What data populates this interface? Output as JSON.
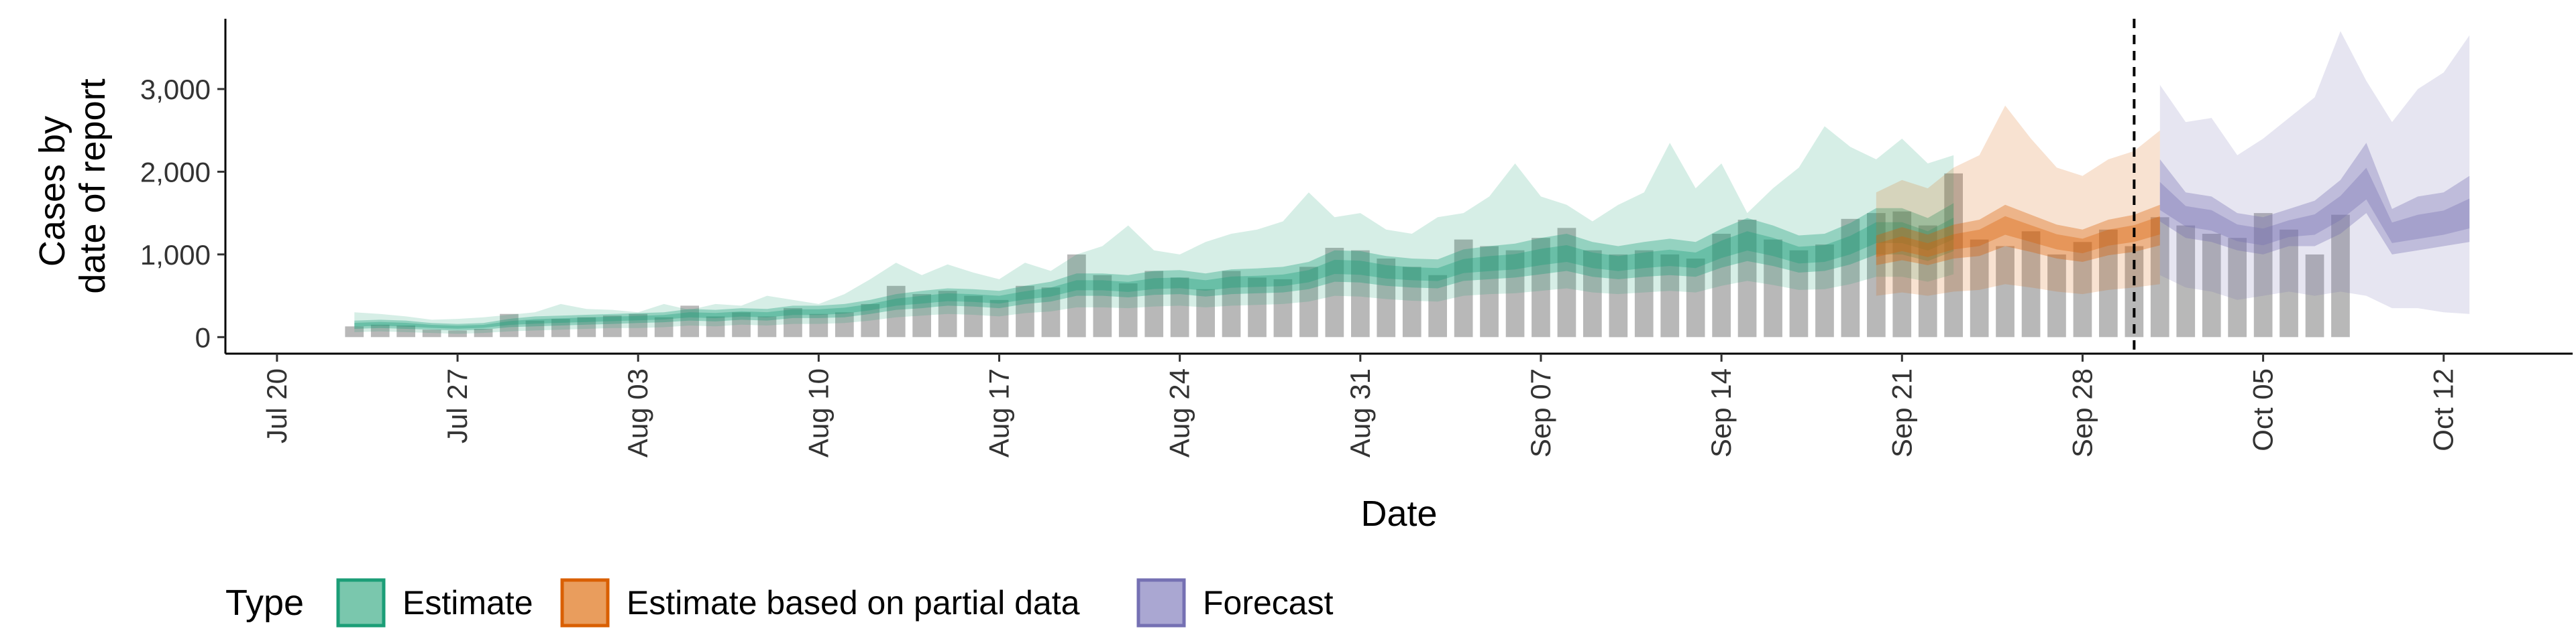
{
  "chart_data": {
    "type": "area",
    "title": "",
    "xlabel": "Date",
    "ylabel_lines": [
      "Cases by",
      "date of report"
    ],
    "x_range": [
      "2020-07-18",
      "2020-10-17"
    ],
    "ylim": [
      -200,
      3850
    ],
    "grid": false,
    "y_ticks": [
      0,
      1000,
      2000,
      3000
    ],
    "y_tick_labels": [
      "0",
      "1,000",
      "2,000",
      "3,000"
    ],
    "x_ticks": [
      "2020-07-20",
      "2020-07-27",
      "2020-08-03",
      "2020-08-10",
      "2020-08-17",
      "2020-08-24",
      "2020-08-31",
      "2020-09-07",
      "2020-09-14",
      "2020-09-21",
      "2020-09-28",
      "2020-10-05",
      "2020-10-12"
    ],
    "x_tick_labels": [
      "Jul 20",
      "Jul 27",
      "Aug 03",
      "Aug 10",
      "Aug 17",
      "Aug 24",
      "Aug 31",
      "Sep 07",
      "Sep 14",
      "Sep 21",
      "Sep 28",
      "Oct 05",
      "Oct 12"
    ],
    "vline_date": "2020-09-30",
    "bars": {
      "start_date": "2020-07-23",
      "color": "#a6a6a6",
      "values": [
        130,
        150,
        140,
        90,
        80,
        100,
        280,
        200,
        220,
        240,
        260,
        280,
        240,
        380,
        250,
        300,
        250,
        350,
        280,
        300,
        400,
        620,
        520,
        560,
        500,
        450,
        620,
        600,
        1000,
        750,
        650,
        800,
        720,
        580,
        800,
        720,
        700,
        850,
        1080,
        1050,
        950,
        850,
        750,
        1180,
        1100,
        1050,
        1200,
        1320,
        1050,
        1000,
        1050,
        1000,
        950,
        1250,
        1420,
        1180,
        1050,
        1120,
        1430,
        1500,
        1520,
        1350,
        1980,
        1180,
        1100,
        1280,
        1000,
        1150,
        1300,
        1100,
        1450,
        1350,
        1250,
        1200,
        1500,
        1300,
        1000,
        1480
      ]
    },
    "series": [
      {
        "name": "Estimate",
        "color": "#1b9e77",
        "start_date": "2020-07-23",
        "median": [
          150,
          160,
          150,
          130,
          120,
          130,
          170,
          190,
          200,
          210,
          220,
          230,
          240,
          270,
          260,
          280,
          270,
          300,
          300,
          320,
          360,
          420,
          450,
          480,
          470,
          450,
          500,
          540,
          620,
          620,
          600,
          640,
          650,
          620,
          660,
          670,
          680,
          730,
          840,
          830,
          780,
          760,
          750,
          850,
          880,
          900,
          960,
          1000,
          920,
          880,
          920,
          950,
          920,
          1050,
          1150,
          1080,
          980,
          1000,
          1100,
          1250,
          1250,
          1150,
          1300
        ],
        "inner_lower": [
          100,
          110,
          100,
          90,
          80,
          90,
          120,
          130,
          140,
          150,
          160,
          170,
          180,
          200,
          190,
          210,
          200,
          230,
          230,
          240,
          280,
          330,
          350,
          380,
          370,
          350,
          400,
          430,
          500,
          500,
          480,
          510,
          520,
          490,
          520,
          530,
          540,
          580,
          670,
          660,
          620,
          600,
          590,
          680,
          700,
          720,
          760,
          800,
          730,
          700,
          730,
          750,
          730,
          840,
          920,
          860,
          780,
          800,
          880,
          1000,
          1000,
          920,
          1040
        ],
        "inner_upper": [
          200,
          210,
          200,
          170,
          160,
          170,
          220,
          250,
          260,
          270,
          280,
          290,
          300,
          340,
          330,
          350,
          340,
          380,
          380,
          400,
          450,
          520,
          560,
          590,
          580,
          560,
          620,
          670,
          770,
          770,
          750,
          800,
          810,
          770,
          820,
          830,
          850,
          910,
          1050,
          1040,
          980,
          950,
          940,
          1060,
          1100,
          1130,
          1200,
          1250,
          1150,
          1100,
          1150,
          1190,
          1150,
          1310,
          1440,
          1350,
          1230,
          1250,
          1380,
          1560,
          1560,
          1440,
          1620
        ],
        "outer_lower": [
          60,
          70,
          60,
          50,
          40,
          50,
          70,
          80,
          90,
          100,
          110,
          110,
          120,
          140,
          130,
          150,
          140,
          160,
          160,
          170,
          200,
          240,
          260,
          280,
          270,
          250,
          290,
          310,
          360,
          360,
          350,
          370,
          380,
          360,
          380,
          390,
          400,
          430,
          500,
          490,
          460,
          440,
          430,
          500,
          520,
          530,
          560,
          590,
          540,
          520,
          540,
          560,
          540,
          620,
          680,
          630,
          570,
          580,
          640,
          730,
          730,
          670,
          760
        ],
        "outer_upper": [
          300,
          280,
          250,
          210,
          220,
          240,
          270,
          300,
          400,
          340,
          330,
          300,
          400,
          330,
          400,
          380,
          500,
          450,
          400,
          520,
          700,
          900,
          750,
          880,
          780,
          700,
          900,
          800,
          1000,
          1100,
          1350,
          1050,
          1000,
          1150,
          1250,
          1300,
          1400,
          1750,
          1450,
          1500,
          1300,
          1250,
          1450,
          1500,
          1700,
          2100,
          1700,
          1600,
          1400,
          1600,
          1750,
          2350,
          1800,
          2100,
          1500,
          1800,
          2050,
          2550,
          2300,
          2150,
          2400,
          2100,
          2200
        ]
      },
      {
        "name": "Estimate based on partial data",
        "color": "#d95f02",
        "start_date": "2020-09-20",
        "median": [
          1050,
          1130,
          1050,
          1150,
          1200,
          1350,
          1250,
          1150,
          1100,
          1200,
          1250,
          1350
        ],
        "inner_lower": [
          870,
          930,
          870,
          950,
          980,
          1100,
          1030,
          950,
          910,
          990,
          1030,
          1110
        ],
        "inner_upper": [
          1230,
          1330,
          1240,
          1360,
          1420,
          1600,
          1480,
          1360,
          1300,
          1420,
          1480,
          1600
        ],
        "outer_lower": [
          500,
          540,
          500,
          550,
          570,
          640,
          600,
          550,
          520,
          570,
          600,
          640
        ],
        "outer_upper": [
          1750,
          1900,
          1800,
          2050,
          2200,
          2800,
          2400,
          2050,
          1950,
          2150,
          2250,
          2500
        ]
      },
      {
        "name": "Forecast",
        "color": "#7570b3",
        "start_date": "2020-10-01",
        "median": [
          1650,
          1450,
          1400,
          1250,
          1200,
          1300,
          1350,
          1550,
          1800,
          1250,
          1300,
          1350,
          1450
        ],
        "inner_lower": [
          1400,
          1200,
          1150,
          1050,
          1000,
          1100,
          1100,
          1250,
          1500,
          1000,
          1050,
          1100,
          1150
        ],
        "inner_upper": [
          2150,
          1750,
          1700,
          1500,
          1450,
          1550,
          1650,
          1900,
          2350,
          1550,
          1700,
          1750,
          1950
        ],
        "outer_lower": [
          750,
          600,
          550,
          450,
          500,
          550,
          500,
          550,
          500,
          350,
          350,
          300,
          280
        ],
        "outer_upper": [
          3050,
          2600,
          2650,
          2200,
          2400,
          2650,
          2900,
          3700,
          3100,
          2600,
          3000,
          3200,
          3650
        ]
      }
    ],
    "legend": {
      "title": "Type",
      "position": "bottom",
      "entries": [
        {
          "label": "Estimate",
          "fill": "#7ac7ad",
          "stroke": "#1b9e77"
        },
        {
          "label": "Estimate based on partial data",
          "fill": "#e99d5d",
          "stroke": "#d95f02"
        },
        {
          "label": "Forecast",
          "fill": "#aaa7d2",
          "stroke": "#7570b3"
        }
      ]
    }
  }
}
